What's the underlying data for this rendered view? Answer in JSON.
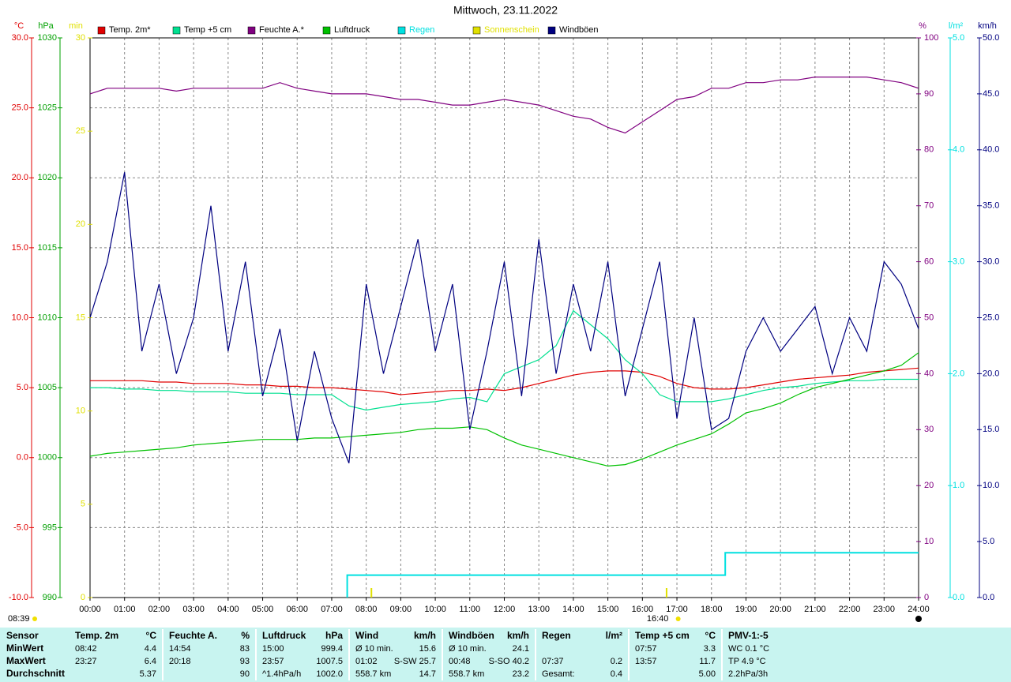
{
  "chart_data": {
    "type": "line",
    "title": "Mittwoch, 23.11.2022",
    "x": [
      0,
      0.5,
      1,
      1.5,
      2,
      2.5,
      3,
      3.5,
      4,
      4.5,
      5,
      5.5,
      6,
      6.5,
      7,
      7.5,
      8,
      8.5,
      9,
      9.5,
      10,
      10.5,
      11,
      11.5,
      12,
      12.5,
      13,
      13.5,
      14,
      14.5,
      15,
      15.5,
      16,
      16.5,
      17,
      17.5,
      18,
      18.5,
      19,
      19.5,
      20,
      20.5,
      21,
      21.5,
      22,
      22.5,
      23,
      23.5,
      24
    ],
    "xlim": [
      0,
      24
    ],
    "xticks": [
      {
        "value": 0,
        "label": "00:00"
      },
      {
        "value": 1,
        "label": "01:00"
      },
      {
        "value": 2,
        "label": "02:00"
      },
      {
        "value": 3,
        "label": "03:00"
      },
      {
        "value": 4,
        "label": "04:00"
      },
      {
        "value": 5,
        "label": "05:00"
      },
      {
        "value": 6,
        "label": "06:00"
      },
      {
        "value": 7,
        "label": "07:00"
      },
      {
        "value": 8,
        "label": "08:00"
      },
      {
        "value": 9,
        "label": "09:00"
      },
      {
        "value": 10,
        "label": "10:00"
      },
      {
        "value": 11,
        "label": "11:00"
      },
      {
        "value": 12,
        "label": "12:00"
      },
      {
        "value": 13,
        "label": "13:00"
      },
      {
        "value": 14,
        "label": "14:00"
      },
      {
        "value": 15,
        "label": "15:00"
      },
      {
        "value": 16,
        "label": "16:00"
      },
      {
        "value": 17,
        "label": "17:00"
      },
      {
        "value": 18,
        "label": "18:00"
      },
      {
        "value": 19,
        "label": "19:00"
      },
      {
        "value": 20,
        "label": "20:00"
      },
      {
        "value": 21,
        "label": "21:00"
      },
      {
        "value": 22,
        "label": "22:00"
      },
      {
        "value": 23,
        "label": "23:00"
      },
      {
        "value": 24,
        "label": "24:00"
      }
    ],
    "grid": true,
    "axes": [
      {
        "label": "°C",
        "color": "#e00000",
        "lim": [
          -10,
          30
        ],
        "ticks": [
          {
            "value": -10,
            "label": "-10.0"
          },
          {
            "value": -5,
            "label": "-5.0"
          },
          {
            "value": 0,
            "label": "0.0"
          },
          {
            "value": 5,
            "label": "5.0"
          },
          {
            "value": 10,
            "label": "10.0"
          },
          {
            "value": 15,
            "label": "15.0"
          },
          {
            "value": 20,
            "label": "20.0"
          },
          {
            "value": 25,
            "label": "25.0"
          },
          {
            "value": 30,
            "label": "30.0"
          }
        ]
      },
      {
        "label": "hPa",
        "color": "#00a000",
        "lim": [
          990,
          1030
        ],
        "ticks": [
          990,
          995,
          1000,
          1005,
          1010,
          1015,
          1020,
          1025,
          1030
        ]
      },
      {
        "label": "min",
        "color": "#e0e000",
        "lim": [
          0,
          30
        ],
        "ticks": [
          0,
          5,
          10,
          15,
          20,
          25,
          30
        ]
      },
      {
        "label": "%",
        "color": "#800080",
        "lim": [
          0,
          100
        ],
        "ticks": [
          0,
          10,
          20,
          30,
          40,
          50,
          60,
          70,
          80,
          90,
          100
        ]
      },
      {
        "label": "l/m²",
        "color": "#00e0e0",
        "lim": [
          0,
          5
        ],
        "ticks": [
          {
            "value": 0,
            "label": "0.0"
          },
          {
            "value": 1,
            "label": "1.0"
          },
          {
            "value": 2,
            "label": "2.0"
          },
          {
            "value": 3,
            "label": "3.0"
          },
          {
            "value": 4,
            "label": "4.0"
          },
          {
            "value": 5,
            "label": "5.0"
          }
        ]
      },
      {
        "label": "km/h",
        "color": "#000080",
        "lim": [
          0,
          50
        ],
        "ticks": [
          {
            "value": 0,
            "label": "0.0"
          },
          {
            "value": 5,
            "label": "5.0"
          },
          {
            "value": 10,
            "label": "10.0"
          },
          {
            "value": 15,
            "label": "15.0"
          },
          {
            "value": 20,
            "label": "20.0"
          },
          {
            "value": 25,
            "label": "25.0"
          },
          {
            "value": 30,
            "label": "30.0"
          },
          {
            "value": 35,
            "label": "35.0"
          },
          {
            "value": 40,
            "label": "40.0"
          },
          {
            "value": 45,
            "label": "45.0"
          },
          {
            "value": 50,
            "label": "50.0"
          }
        ]
      }
    ],
    "series": [
      {
        "name": "Temp. 2m*",
        "color": "#e00000",
        "axis": 0,
        "values": [
          5.5,
          5.5,
          5.5,
          5.5,
          5.4,
          5.4,
          5.3,
          5.3,
          5.3,
          5.2,
          5.2,
          5.1,
          5.1,
          5.0,
          5.0,
          4.9,
          4.8,
          4.7,
          4.5,
          4.6,
          4.7,
          4.8,
          4.8,
          4.9,
          4.8,
          5.0,
          5.3,
          5.6,
          5.9,
          6.1,
          6.2,
          6.2,
          6.1,
          5.8,
          5.3,
          5.0,
          4.9,
          4.9,
          5.0,
          5.2,
          5.4,
          5.6,
          5.7,
          5.8,
          5.9,
          6.1,
          6.2,
          6.3,
          6.4
        ]
      },
      {
        "name": "Temp +5 cm",
        "color": "#00e090",
        "axis": 0,
        "values": [
          5.0,
          5.0,
          4.9,
          4.9,
          4.8,
          4.8,
          4.7,
          4.7,
          4.7,
          4.6,
          4.6,
          4.6,
          4.5,
          4.5,
          4.5,
          3.7,
          3.4,
          3.6,
          3.8,
          3.9,
          4.0,
          4.2,
          4.3,
          4.0,
          6.0,
          6.5,
          7.0,
          8.0,
          10.5,
          9.5,
          8.5,
          7.0,
          6.0,
          4.5,
          4.0,
          4.0,
          4.0,
          4.2,
          4.5,
          4.8,
          5.0,
          5.1,
          5.3,
          5.4,
          5.5,
          5.5,
          5.6,
          5.6,
          5.6
        ]
      },
      {
        "name": "Feuchte A.*",
        "color": "#800080",
        "axis": 3,
        "values": [
          90,
          91,
          91,
          91,
          91,
          90.5,
          91,
          91,
          91,
          91,
          91,
          92,
          91,
          90.5,
          90,
          90,
          90,
          89.5,
          89,
          89,
          88.5,
          88,
          88,
          88.5,
          89,
          88.5,
          88,
          87,
          86,
          85.5,
          84,
          83,
          85,
          87,
          89,
          89.5,
          91,
          91,
          92,
          92,
          92.5,
          92.5,
          93,
          93,
          93,
          93,
          92.5,
          92,
          91
        ]
      },
      {
        "name": "Luftdruck",
        "color": "#00c000",
        "axis": 1,
        "values": [
          1000.1,
          1000.3,
          1000.4,
          1000.5,
          1000.6,
          1000.7,
          1000.9,
          1001.0,
          1001.1,
          1001.2,
          1001.3,
          1001.3,
          1001.3,
          1001.4,
          1001.4,
          1001.5,
          1001.6,
          1001.7,
          1001.8,
          1002.0,
          1002.1,
          1002.1,
          1002.2,
          1002.0,
          1001.4,
          1000.9,
          1000.6,
          1000.3,
          1000.0,
          999.7,
          999.4,
          999.5,
          999.9,
          1000.4,
          1000.9,
          1001.3,
          1001.7,
          1002.4,
          1003.2,
          1003.5,
          1003.9,
          1004.5,
          1005.0,
          1005.3,
          1005.6,
          1005.9,
          1006.2,
          1006.6,
          1007.5
        ]
      },
      {
        "name": "Regen",
        "color": "#00e0e0",
        "axis": 4,
        "x": [
          7.45,
          7.45,
          18.4,
          18.4,
          24
        ],
        "values": [
          0,
          0.2,
          0.2,
          0.4,
          0.4
        ]
      },
      {
        "name": "Sonnenschein",
        "color": "#e0e000",
        "axis": 2,
        "style": "tick",
        "x": [
          8.15,
          16.7
        ],
        "values": [
          0,
          0
        ]
      },
      {
        "name": "Windböen",
        "color": "#000080",
        "axis": 5,
        "values": [
          25,
          30,
          38,
          22,
          28,
          20,
          25,
          35,
          22,
          30,
          18,
          24,
          14,
          22,
          16,
          12,
          28,
          20,
          26,
          32,
          22,
          28,
          15,
          22,
          30,
          18,
          32,
          20,
          28,
          22,
          30,
          18,
          24,
          30,
          16,
          25,
          15,
          16,
          22,
          25,
          22,
          24,
          26,
          20,
          25,
          22,
          30,
          28,
          24
        ]
      }
    ],
    "annotations": [
      {
        "x": 8.65,
        "label": "08:39"
      },
      {
        "x": 16.67,
        "label": "16:40"
      }
    ]
  },
  "table": {
    "groups": [
      {
        "header": {
          "l": "Sensor"
        },
        "rows": [
          {
            "l": "MinWert"
          },
          {
            "l": "MaxWert"
          },
          {
            "l": "Durchschnitt"
          }
        ]
      },
      {
        "header": {
          "l": "Temp. 2m",
          "r": "°C"
        },
        "rows": [
          {
            "l": "08:42",
            "r": "4.4"
          },
          {
            "l": "23:27",
            "r": "6.4"
          },
          {
            "r": "5.37"
          }
        ]
      },
      {
        "header": {
          "l": "Feuchte A.",
          "r": "%"
        },
        "rows": [
          {
            "l": "14:54",
            "r": "83"
          },
          {
            "l": "20:18",
            "r": "93"
          },
          {
            "r": "90"
          }
        ]
      },
      {
        "header": {
          "l": "Luftdruck",
          "r": "hPa"
        },
        "rows": [
          {
            "l": "15:00",
            "r": "999.4"
          },
          {
            "l": "23:57",
            "r": "1007.5"
          },
          {
            "l": "^1.4hPa/h",
            "r": "1002.0"
          }
        ]
      },
      {
        "header": {
          "l": "Wind",
          "r": "km/h"
        },
        "rows": [
          {
            "l": "Ø 10 min.",
            "r": "15.6"
          },
          {
            "l": "01:02",
            "r": "S-SW 25.7"
          },
          {
            "l": "558.7 km",
            "r": "14.7"
          }
        ]
      },
      {
        "header": {
          "l": "Windböen",
          "r": "km/h"
        },
        "rows": [
          {
            "l": "Ø 10 min.",
            "r": "24.1"
          },
          {
            "l": "00:48",
            "r": "S-SO 40.2"
          },
          {
            "l": "558.7 km",
            "r": "23.2"
          }
        ]
      },
      {
        "header": {
          "l": "Regen",
          "r": "l/m²"
        },
        "rows": [
          {},
          {
            "l": "07:37",
            "r": "0.2"
          },
          {
            "l": "Gesamt:",
            "r": "0.4"
          }
        ]
      },
      {
        "header": {
          "l": "Temp +5 cm",
          "r": "°C"
        },
        "rows": [
          {
            "l": "07:57",
            "r": "3.3"
          },
          {
            "l": "13:57",
            "r": "11.7"
          },
          {
            "r": "5.00"
          }
        ]
      },
      {
        "header": {
          "l": "PMV-1:-5"
        },
        "rows": [
          {
            "l": "WC 0.1 °C"
          },
          {
            "l": "TP 4.9 °C"
          },
          {
            "l": "2.2hPa/3h"
          }
        ]
      }
    ]
  }
}
